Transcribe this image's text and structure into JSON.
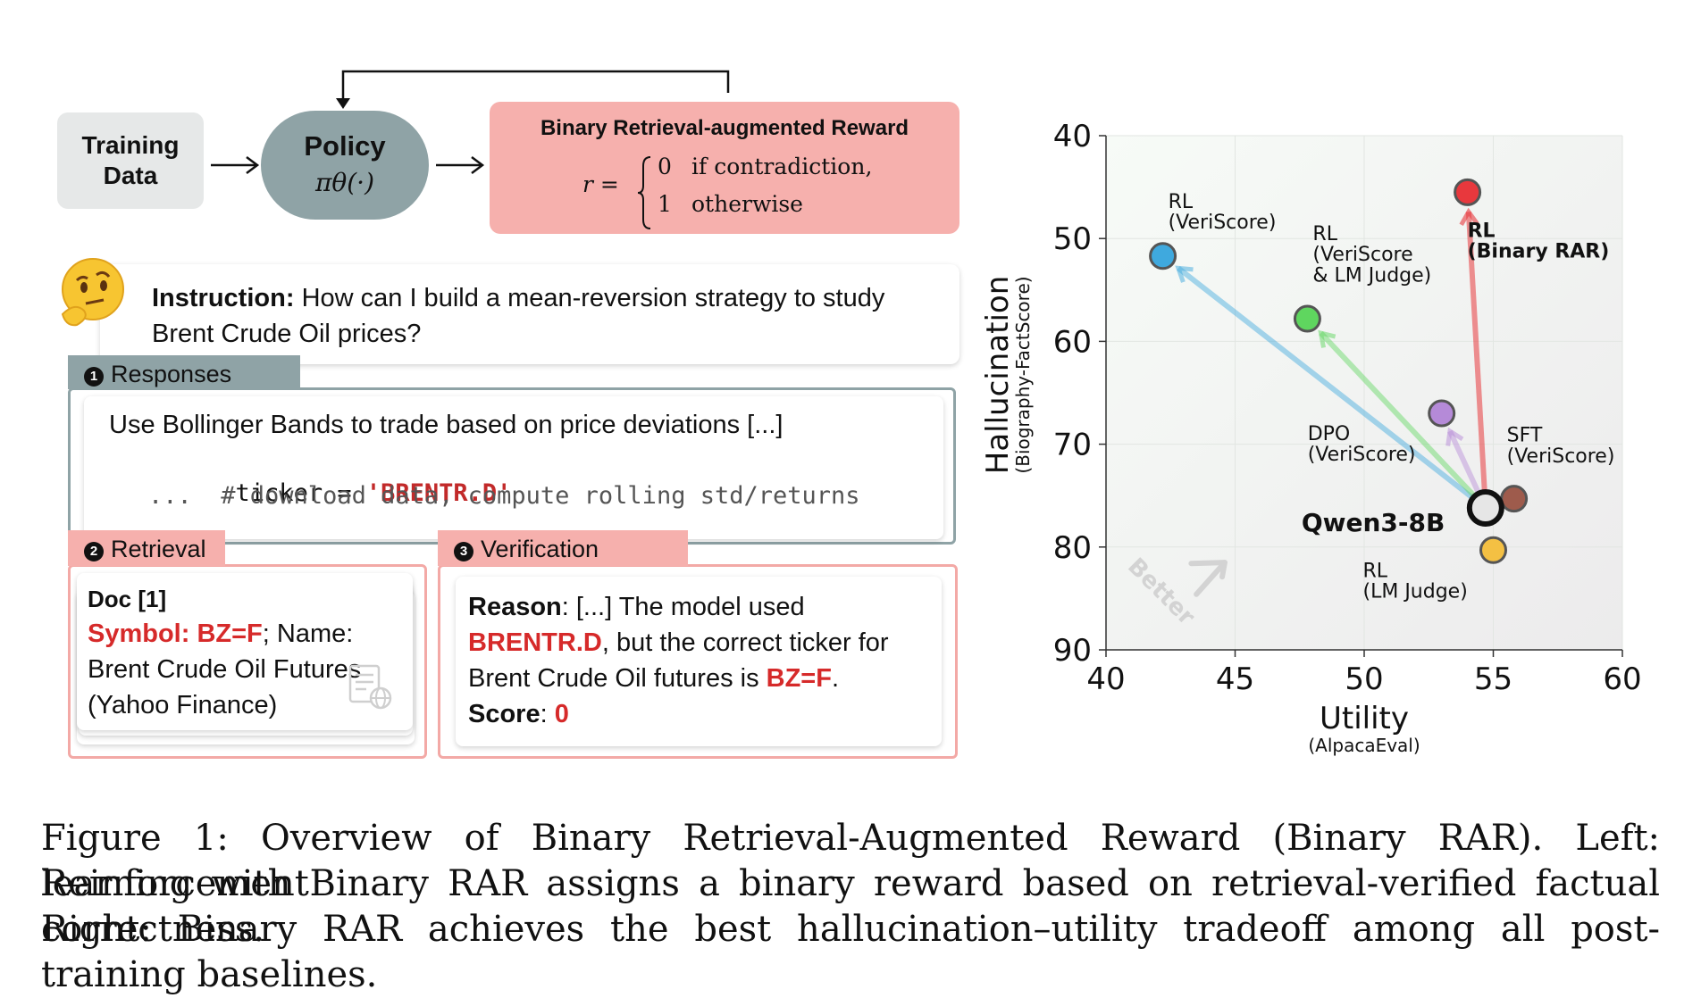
{
  "diagram": {
    "training_data": "Training Data",
    "policy_title": "Policy",
    "policy_formula": "πθ(·)",
    "reward_title": "Binary Retrieval-augmented Reward",
    "reward_formula_lhs": "r =",
    "reward_case0_value": "0",
    "reward_case0_cond": "if contradiction,",
    "reward_case1_value": "1",
    "reward_case1_cond": "otherwise",
    "instruction_label": "Instruction:",
    "instruction_text": "How can I build a mean-reversion strategy to study Brent Crude Oil prices?",
    "emoji_icon": "thinking-face-icon",
    "responses_tab": "Responses",
    "response_line1": "Use Bollinger Bands to trade based on price deviations [...]",
    "response_code_var": "ticker = ",
    "response_code_str": "'BRENTR.D'",
    "response_code_line2": "...  # download data, compute rolling std/returns",
    "retrieval_tab": "Retrieval",
    "doc_title": "Doc [1]",
    "doc_symbol": "Symbol: BZ=F",
    "doc_sep": ";  Name:",
    "doc_name": "Brent Crude Oil Futures (Yahoo Finance)",
    "verification_tab": "Verification",
    "reason_label": "Reason",
    "reason_text1": ": [...] The model used ",
    "reason_ticker": "BRENTR.D",
    "reason_text2": ", but the correct ticker for Brent Crude Oil futures is ",
    "reason_correct": "BZ=F",
    "reason_end": ".",
    "score_label": "Score",
    "score_sep": ": ",
    "score_value": "0",
    "step_numbers": [
      "1",
      "2",
      "3"
    ]
  },
  "chart_data": {
    "type": "scatter",
    "xlabel": "Utility",
    "xlabel_sub": "(AlpacaEval)",
    "ylabel": "Hallucination",
    "ylabel_sub": "(Biography-FactScore)",
    "xlim": [
      40,
      60
    ],
    "ylim": [
      90,
      40
    ],
    "y_inverted": true,
    "xticks": [
      "40",
      "45",
      "50",
      "55",
      "60"
    ],
    "yticks": [
      "40",
      "50",
      "60",
      "70",
      "80",
      "90"
    ],
    "watermark": "Better",
    "points": [
      {
        "label": "Qwen3-8B",
        "x": 54.7,
        "y": 76.2,
        "color": "#e6e6e6",
        "bold": true
      },
      {
        "label": "RL\n(Binary RAR)",
        "x": 54.0,
        "y": 45.5,
        "color": "#e8383d",
        "bold": true
      },
      {
        "label": "RL\n(VeriScore)",
        "x": 42.2,
        "y": 51.7,
        "color": "#3fa9de"
      },
      {
        "label": "RL\n(VeriScore\n& LM Judge)",
        "x": 47.8,
        "y": 57.8,
        "color": "#5fd65f"
      },
      {
        "label": "DPO\n(VeriScore)",
        "x": 53.0,
        "y": 67.0,
        "color": "#b58ad8"
      },
      {
        "label": "SFT\n(VeriScore)",
        "x": 55.8,
        "y": 75.3,
        "color": "#9e5b4c"
      },
      {
        "label": "RL\n(LM Judge)",
        "x": 55.0,
        "y": 80.3,
        "color": "#f4c043"
      }
    ]
  },
  "caption": {
    "line1": "Figure 1: Overview of Binary Retrieval-Augmented Reward (Binary RAR). Left: Reinforcement",
    "line2": "learning with Binary RAR assigns a binary reward based on retrieval-verified factual correctness.",
    "line3": "Right: Binary RAR achieves the best hallucination–utility tradeoff among all post-training baselines."
  }
}
